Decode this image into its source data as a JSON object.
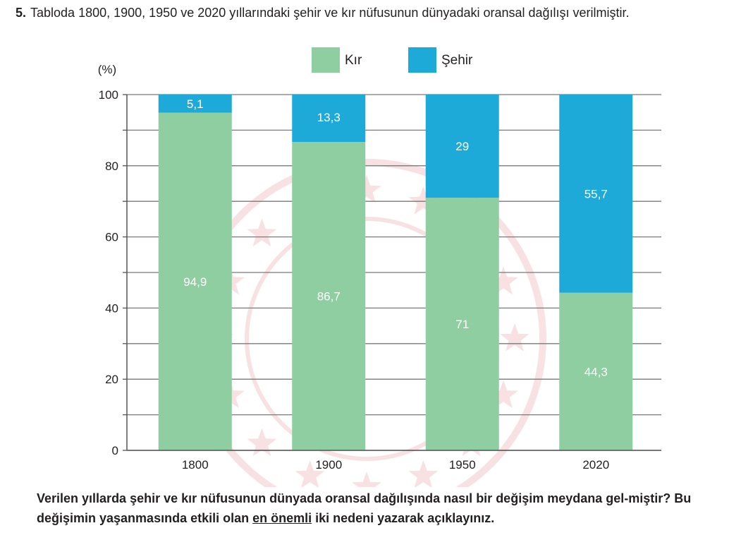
{
  "question": {
    "number": "5.",
    "text": "Tabloda 1800, 1900, 1950 ve 2020 yıllarındaki şehir ve kır nüfusunun dünyadaki oransal dağılışı verilmiştir."
  },
  "chart_data": {
    "type": "bar",
    "stacked": true,
    "ylabel": "(%)",
    "xlabel": "",
    "ylim": [
      0,
      100
    ],
    "yticks": [
      0,
      20,
      40,
      60,
      80,
      100
    ],
    "ytick_labels": [
      "0",
      "20",
      "40",
      "60",
      "80",
      "100"
    ],
    "minor_gridlines_every": 10,
    "categories": [
      "1800",
      "1900",
      "1950",
      "2020"
    ],
    "series": [
      {
        "name": "Kır",
        "color": "#8fcea1",
        "values": [
          94.9,
          86.7,
          71,
          44.3
        ],
        "labels": [
          "94,9",
          "86,7",
          "71",
          "44,3"
        ]
      },
      {
        "name": "Şehir",
        "color": "#1eaad8",
        "values": [
          5.1,
          13.3,
          29,
          55.7
        ],
        "labels": [
          "5,1",
          "13,3",
          "29",
          "55,7"
        ]
      }
    ],
    "legend_position": "top"
  },
  "footer": {
    "part1": "Verilen yıllarda şehir ve kır nüfusunun dünyada oransal dağılışında nasıl bir değişim meydana gel-miştir? Bu değişimin yaşanmasında etkili olan ",
    "underlined": "en önemli",
    "part2": " iki nedeni yazarak açıklayınız."
  }
}
